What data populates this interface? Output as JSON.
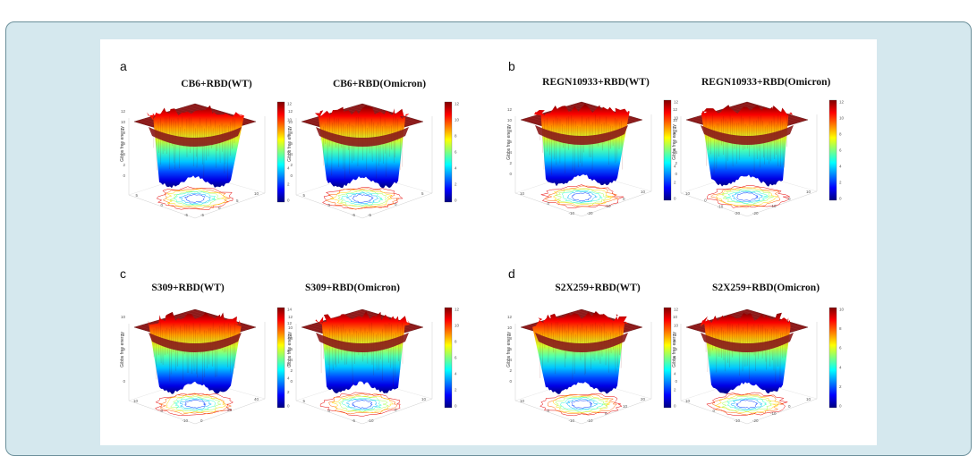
{
  "figure": {
    "panels": [
      {
        "letter": "a",
        "plots": [
          {
            "title": "CB6+RBD(WT)",
            "ylabel": "Gibbs free energy",
            "xlabel": "PC1",
            "zlabel": "PC2",
            "cb_ticks": [
              "12",
              "10",
              "8",
              "6",
              "4",
              "2",
              "0"
            ],
            "z_ticks": [
              "12",
              "10",
              "8",
              "6",
              "4",
              "2",
              "0"
            ],
            "pc1_ticks": [
              "-5",
              "0",
              "5",
              "10"
            ],
            "pc2_ticks": [
              "5",
              "0",
              "-5"
            ]
          },
          {
            "title": "CB6+RBD(Omicron)",
            "ylabel": "Gibbs free energy",
            "xlabel": "PC1",
            "zlabel": "PC2",
            "cb_ticks": [
              "12",
              "10",
              "8",
              "6",
              "4",
              "2",
              "0"
            ],
            "z_ticks": [
              "12",
              "10",
              "8",
              "6",
              "4",
              "2",
              "0"
            ],
            "pc1_ticks": [
              "-5",
              "0",
              "5"
            ],
            "pc2_ticks": [
              "5",
              "0",
              "-5"
            ]
          }
        ]
      },
      {
        "letter": "b",
        "plots": [
          {
            "title": "REGN10933+RBD(WT)",
            "ylabel": "Gibbs free energy",
            "xlabel": "PC1",
            "zlabel": "PC2",
            "cb_ticks": [
              "12",
              "10",
              "8",
              "6",
              "4",
              "2",
              "0"
            ],
            "z_ticks": [
              "12",
              "10",
              "8",
              "6",
              "4",
              "2",
              "0"
            ],
            "pc1_ticks": [
              "-20",
              "-10",
              "0",
              "10"
            ],
            "pc2_ticks": [
              "10",
              "0",
              "-10"
            ]
          },
          {
            "title": "REGN10933+RBD(Omicron)",
            "ylabel": "Gibbs free energy",
            "xlabel": "PC1",
            "zlabel": "PC2",
            "cb_ticks": [
              "12",
              "10",
              "8",
              "6",
              "4",
              "2",
              "0"
            ],
            "z_ticks": [
              "12",
              "10",
              "8",
              "6",
              "4",
              "2",
              "0"
            ],
            "pc1_ticks": [
              "-20",
              "-10",
              "0",
              "10"
            ],
            "pc2_ticks": [
              "10",
              "0",
              "-10",
              "-20"
            ]
          }
        ]
      },
      {
        "letter": "c",
        "plots": [
          {
            "title": "S309+RBD(WT)",
            "ylabel": "Gibbs free energy",
            "xlabel": "PC1",
            "zlabel": "PC2",
            "cb_ticks": [
              "14",
              "12",
              "10",
              "8",
              "6",
              "4",
              "2",
              "0"
            ],
            "z_ticks": [
              "10",
              "5",
              "0"
            ],
            "pc1_ticks": [
              "0",
              "20",
              "40"
            ],
            "pc2_ticks": [
              "10",
              "0",
              "-10"
            ]
          },
          {
            "title": "S309+RBD(Omicron)",
            "ylabel": "Gibbs free energy",
            "xlabel": "PC1",
            "zlabel": "PC2",
            "cb_ticks": [
              "12",
              "10",
              "8",
              "6",
              "4",
              "2",
              "0"
            ],
            "z_ticks": [
              "12",
              "10",
              "8",
              "6",
              "4",
              "2",
              "0"
            ],
            "pc1_ticks": [
              "-10",
              "0",
              "10"
            ],
            "pc2_ticks": [
              "5",
              "0",
              "-5"
            ]
          }
        ]
      },
      {
        "letter": "d",
        "plots": [
          {
            "title": "S2X259+RBD(WT)",
            "ylabel": "Gibbs free energy",
            "xlabel": "PC1",
            "zlabel": "PC2",
            "cb_ticks": [
              "12",
              "10",
              "8",
              "6",
              "4",
              "2",
              "0"
            ],
            "z_ticks": [
              "12",
              "10",
              "8",
              "6",
              "4",
              "2",
              "0"
            ],
            "pc1_ticks": [
              "-10",
              "0",
              "10",
              "20"
            ],
            "pc2_ticks": [
              "10",
              "0",
              "-10"
            ]
          },
          {
            "title": "S2X259+RBD(Omicron)",
            "ylabel": "Gibbs free energy",
            "xlabel": "PC1",
            "zlabel": "PC2",
            "cb_ticks": [
              "10",
              "8",
              "6",
              "4",
              "2",
              "0"
            ],
            "z_ticks": [
              "10",
              "5",
              "0"
            ],
            "pc1_ticks": [
              "-20",
              "-10",
              "0",
              "10"
            ],
            "pc2_ticks": [
              "10",
              "0",
              "-10"
            ]
          }
        ]
      }
    ],
    "colors": {
      "background": "#d5e8ee",
      "border": "#6b8f9a",
      "plateau": "#8b1a1a",
      "colormap": [
        "#00007f",
        "#0000ff",
        "#007fff",
        "#00ffff",
        "#7fff7f",
        "#ffff00",
        "#ff7f00",
        "#ff0000",
        "#7f0000"
      ]
    }
  }
}
